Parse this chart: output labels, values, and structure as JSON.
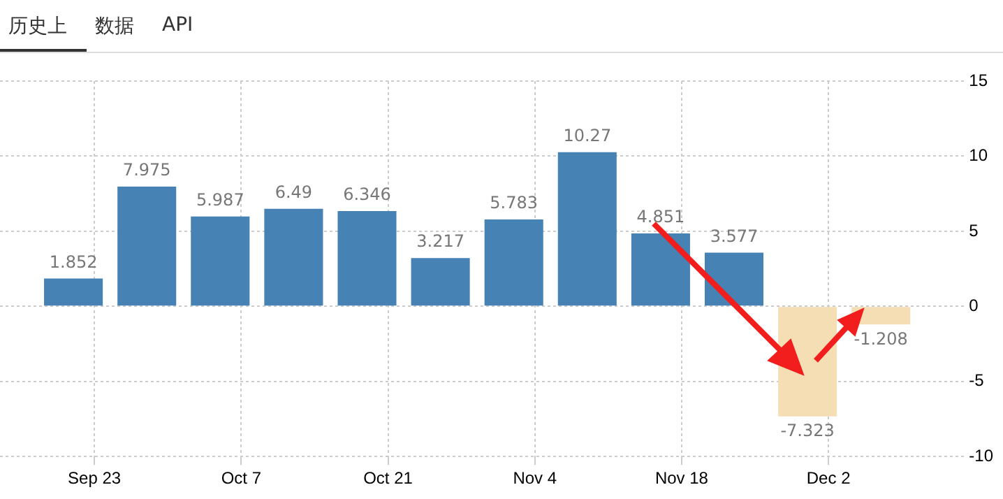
{
  "chart_data": {
    "type": "bar",
    "x": [
      "--09-21",
      "--09-28",
      "--10-05",
      "--10-12",
      "--10-19",
      "--10-26",
      "--11-02",
      "--11-09",
      "--11-16",
      "--11-23",
      "--11-30",
      "--12-07"
    ],
    "values": [
      1.852,
      7.975,
      5.987,
      6.49,
      6.346,
      3.217,
      5.783,
      10.27,
      4.851,
      3.577,
      -7.323,
      -1.208
    ],
    "colors": [
      "#4682b4",
      "#4682b4",
      "#4682b4",
      "#4682b4",
      "#4682b4",
      "#4682b4",
      "#4682b4",
      "#4682b4",
      "#4682b4",
      "#4682b4",
      "#f5deb3",
      "#f5deb3"
    ],
    "xlim": [
      "--09-14",
      "--12-15"
    ],
    "xticks": [
      {
        "value": "--09-23",
        "label": "Sep 23"
      },
      {
        "value": "--10-07",
        "label": "Oct 7"
      },
      {
        "value": "--10-21",
        "label": "Oct 21"
      },
      {
        "value": "--11-04",
        "label": "Nov 4"
      },
      {
        "value": "--11-18",
        "label": "Nov 18"
      },
      {
        "value": "--12-02",
        "label": "Dec 2"
      }
    ],
    "ylim": [
      -10,
      15
    ],
    "yticks": [
      -10,
      -5,
      0,
      5,
      10,
      15
    ],
    "grid": true,
    "legend": false,
    "data_labels": true,
    "annotations": [
      "历史上",
      "数据",
      "API"
    ]
  }
}
